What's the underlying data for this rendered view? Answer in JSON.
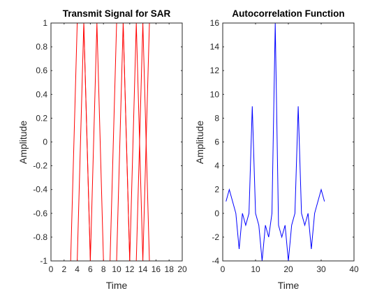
{
  "chart_data": [
    {
      "type": "line",
      "title": "Transmit Signal for SAR",
      "xlabel": "Time",
      "ylabel": "Amplitude",
      "xlim": [
        0,
        20
      ],
      "ylim": [
        -1,
        1
      ],
      "xticks": [
        0,
        2,
        4,
        6,
        8,
        10,
        12,
        14,
        16,
        18,
        20
      ],
      "yticks": [
        -1,
        -0.8,
        -0.6,
        -0.4,
        -0.2,
        0,
        0.2,
        0.4,
        0.6,
        0.8,
        1
      ],
      "grid": false,
      "series": [
        {
          "color": "#ff0000",
          "x": [
            1,
            2,
            3,
            4,
            5,
            6,
            7,
            8,
            9,
            10,
            11,
            12,
            13,
            14,
            15
          ],
          "y": [
            -1,
            -1,
            -1,
            1,
            1,
            -1,
            1,
            -1,
            -1,
            1,
            1,
            -1,
            1,
            -1,
            1
          ]
        },
        {
          "color": "#ff0000",
          "x": [
            1,
            2,
            3,
            4,
            5,
            6,
            7,
            8,
            9,
            10,
            11,
            12,
            13,
            14,
            15
          ],
          "y": [
            -1,
            -1,
            -1,
            -1,
            1,
            -1,
            -1,
            -1,
            -1,
            -1,
            1,
            -1,
            -1,
            1,
            -1
          ]
        }
      ]
    },
    {
      "type": "line",
      "title": "Autocorrelation Function",
      "xlabel": "Time",
      "ylabel": "Amplitude",
      "xlim": [
        0,
        40
      ],
      "ylim": [
        -4,
        16
      ],
      "xticks": [
        0,
        10,
        20,
        30,
        40
      ],
      "yticks": [
        -4,
        -2,
        0,
        2,
        4,
        6,
        8,
        10,
        12,
        14,
        16
      ],
      "grid": false,
      "series": [
        {
          "color": "#0000ff",
          "x": [
            1,
            2,
            3,
            4,
            5,
            6,
            7,
            8,
            9,
            10,
            11,
            12,
            13,
            14,
            15,
            16,
            17,
            18,
            19,
            20,
            21,
            22,
            23,
            24,
            25,
            26,
            27,
            28,
            29,
            30,
            31
          ],
          "y": [
            1,
            2,
            1,
            0,
            -3,
            0,
            -1,
            0,
            9,
            0,
            -1,
            -4,
            -1,
            -2,
            0,
            16,
            -1,
            -2,
            -1,
            -4,
            -1,
            0,
            9,
            0,
            -1,
            0,
            -3,
            0,
            1,
            2,
            1
          ]
        }
      ]
    }
  ]
}
